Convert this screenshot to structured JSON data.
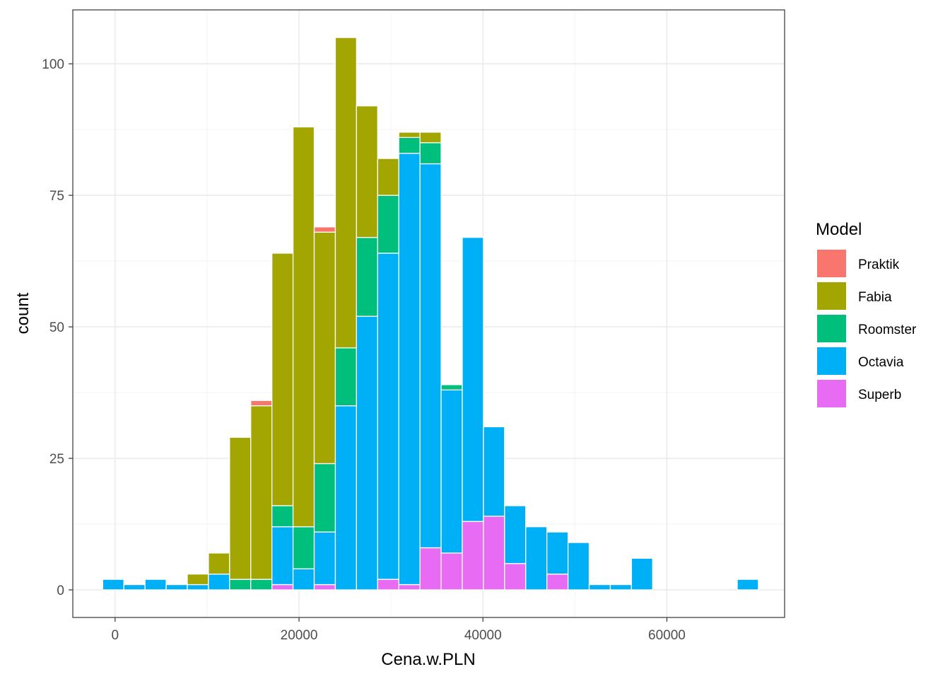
{
  "chart_data": {
    "type": "bar",
    "stacked": true,
    "histogram": true,
    "bin_width": 2300,
    "x_centers": [
      -200,
      2100,
      4400,
      6700,
      9000,
      11300,
      13600,
      15900,
      18200,
      20500,
      22800,
      25100,
      27400,
      29700,
      32000,
      34300,
      36600,
      38900,
      41200,
      43500,
      45800,
      48100,
      50400,
      52700,
      55000,
      57300,
      59600,
      61900,
      64200,
      66500,
      68800
    ],
    "series": [
      {
        "name": "Praktik",
        "color": "#F8766D",
        "values": [
          0,
          0,
          0,
          0,
          0,
          0,
          0,
          1,
          0,
          0,
          1,
          0,
          0,
          0,
          0,
          0,
          0,
          0,
          0,
          0,
          0,
          0,
          0,
          0,
          0,
          0,
          0,
          0,
          0,
          0,
          0
        ]
      },
      {
        "name": "Fabia",
        "color": "#A3A500",
        "values": [
          0,
          0,
          0,
          0,
          2,
          4,
          27,
          33,
          48,
          76,
          44,
          59,
          25,
          7,
          1,
          2,
          0,
          0,
          0,
          0,
          0,
          0,
          0,
          0,
          0,
          0,
          0,
          0,
          0,
          0,
          0
        ]
      },
      {
        "name": "Roomster",
        "color": "#00BF7D",
        "values": [
          0,
          0,
          0,
          0,
          0,
          0,
          2,
          2,
          4,
          8,
          13,
          11,
          15,
          11,
          3,
          4,
          1,
          0,
          0,
          0,
          0,
          0,
          0,
          0,
          0,
          0,
          0,
          0,
          0,
          0,
          0
        ]
      },
      {
        "name": "Octavia",
        "color": "#00B0F6",
        "values": [
          2,
          1,
          2,
          1,
          1,
          3,
          0,
          0,
          11,
          4,
          10,
          35,
          52,
          62,
          82,
          73,
          31,
          54,
          17,
          11,
          12,
          8,
          9,
          1,
          1,
          6,
          0,
          0,
          0,
          0,
          2
        ]
      },
      {
        "name": "Superb",
        "color": "#E76BF3",
        "values": [
          0,
          0,
          0,
          0,
          0,
          0,
          0,
          0,
          1,
          0,
          1,
          0,
          0,
          2,
          1,
          8,
          7,
          13,
          14,
          5,
          0,
          3,
          0,
          0,
          0,
          0,
          0,
          0,
          0,
          0,
          0
        ]
      }
    ],
    "xlabel": "Cena.w.PLN",
    "ylabel": "count",
    "xlim": [
      -4600,
      72800
    ],
    "ylim": [
      -5.25,
      110.25
    ],
    "x_ticks": [
      0,
      20000,
      40000,
      60000
    ],
    "x_tick_labels": [
      "0",
      "20000",
      "40000",
      "60000"
    ],
    "y_ticks": [
      0,
      25,
      50,
      75,
      100
    ],
    "y_tick_labels": [
      "0",
      "25",
      "50",
      "75",
      "100"
    ],
    "grid": true,
    "legend": {
      "title": "Model",
      "placement": "right"
    }
  }
}
